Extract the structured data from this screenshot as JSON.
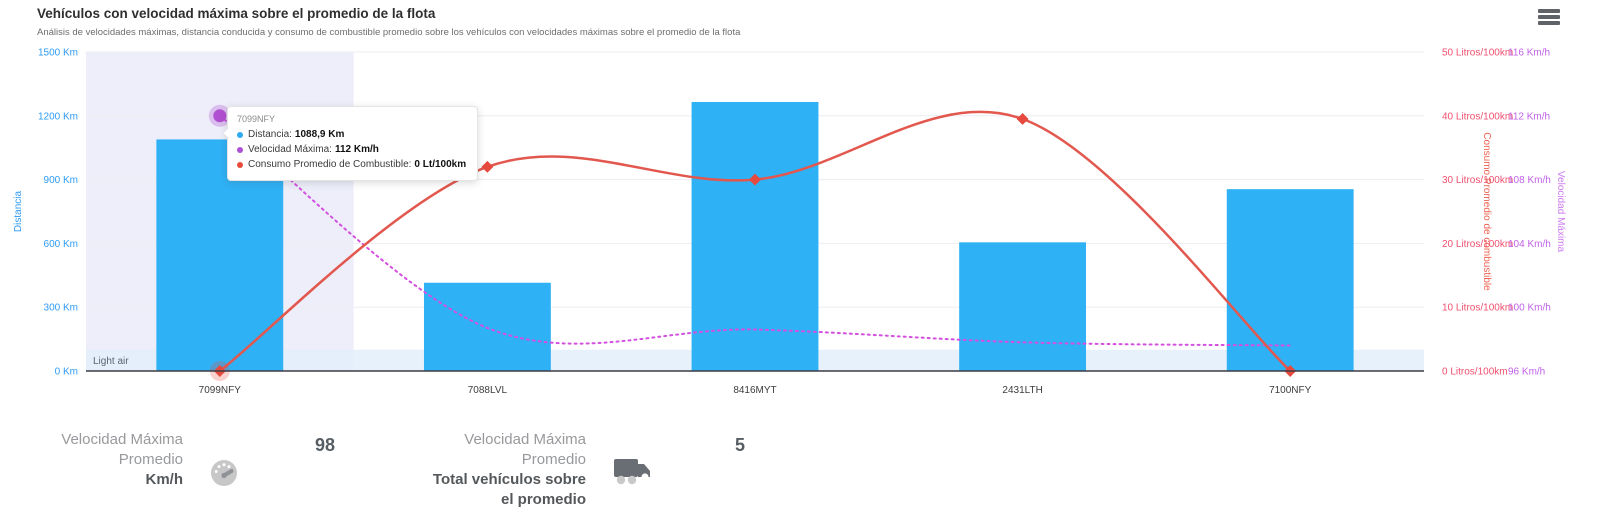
{
  "header": {
    "title": "Vehículos con velocidad máxima sobre el promedio de la flota",
    "subtitle": "Análisis de velocidades máximas, distancia conducida y consumo de combustible promedio sobre los vehículos con velocidades máximas sobre el promedio de la flota",
    "menu_icon": "hamburger-menu-icon"
  },
  "chart_data": {
    "type": "bar",
    "subtype": "combo-bar-line",
    "categories": [
      "7099NFY",
      "7088LVL",
      "8416MYT",
      "2431LTH",
      "7100NFY"
    ],
    "series": [
      {
        "name": "Distancia",
        "type": "bar",
        "unit": "Km",
        "axis": "left",
        "color": "#2FB1F5",
        "values": [
          1088.9,
          415,
          1265,
          605,
          855
        ]
      },
      {
        "name": "Velocidad Máxima",
        "type": "line-dotted",
        "unit": "Km/h",
        "axis": "right-speed",
        "color": "#D44FE0",
        "marker_color": "#B14FD2",
        "values": [
          112,
          98.7,
          98.6,
          97.8,
          97.6
        ]
      },
      {
        "name": "Consumo Promedio de Combustible",
        "type": "line",
        "unit": "Litros/100km",
        "axis": "right-fuel",
        "color": "#E2574E",
        "marker_color": "#E64A3E",
        "values": [
          0,
          32,
          30,
          39.5,
          0
        ]
      }
    ],
    "left_axis": {
      "title": "Distancia",
      "color": "#2E9BF5",
      "range": [
        0,
        1500
      ],
      "ticks": [
        "1500 Km",
        "1200 Km",
        "900 Km",
        "600 Km",
        "300 Km",
        "0 Km"
      ]
    },
    "right_axis_fuel": {
      "title": "Consumo Promedio de combustible",
      "color": "#F0506E",
      "title_color": "#EE6352",
      "range": [
        0,
        50
      ],
      "ticks": [
        "50 Litros/100km",
        "40 Litros/100km",
        "30 Litros/100km",
        "20 Litros/100km",
        "10 Litros/100km",
        "0 Litros/100km"
      ]
    },
    "right_axis_speed": {
      "title": "Velocidad Máxima",
      "color": "#C061E8",
      "title_color": "#CE7BF0",
      "range": [
        96,
        116
      ],
      "ticks": [
        "116 Km/h",
        "112 Km/h",
        "108 Km/h",
        "104 Km/h",
        "100 Km/h",
        "96 Km/h"
      ]
    },
    "band": {
      "label": "Light air",
      "axis": "left",
      "from": 0,
      "to": 100,
      "color": "#e3eefa"
    },
    "highlighted_category": "7099NFY",
    "highlight_color": "#edeefa",
    "grid": true,
    "legend_position": "none"
  },
  "tooltip": {
    "title": "7099NFY",
    "rows": [
      {
        "label": "Distancia:",
        "value": "1088,9 Km",
        "color": "#2EA9F0"
      },
      {
        "label": "Velocidad Máxima:",
        "value": "112 Km/h",
        "color": "#AE4FD4"
      },
      {
        "label": "Consumo Promedio de Combustible:",
        "value": "0 Lt/100km",
        "color": "#E8493D"
      }
    ]
  },
  "stats": {
    "avg_speed": {
      "label_line1": "Velocidad Máxima",
      "label_line2": "Promedio",
      "label_line3_bold": "Km/h",
      "icon": "gauge-icon",
      "value": "98"
    },
    "total_vehicles": {
      "label_line1": "Velocidad Máxima",
      "label_line2": "Promedio",
      "label_line3_bold": "Total vehículos sobre",
      "label_line4_bold": "el promedio",
      "icon": "truck-icon",
      "value": "5"
    }
  }
}
